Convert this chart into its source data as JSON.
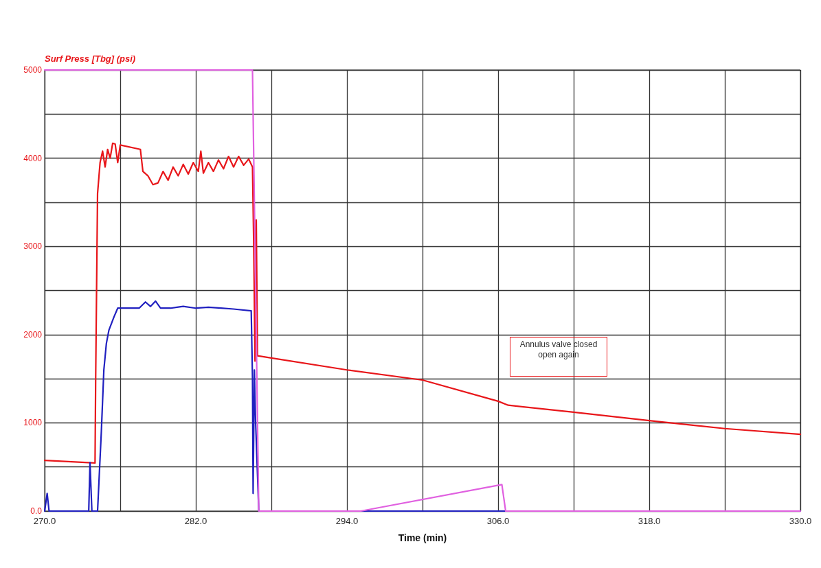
{
  "chart_data": {
    "type": "line",
    "xlabel": "Time (min)",
    "ylabel": "Surf Press [Tbg] (psi)",
    "xlim": [
      270,
      330
    ],
    "xticks": [
      {
        "value": 270,
        "label": "270.0"
      },
      {
        "value": 276,
        "label": null
      },
      {
        "value": 282,
        "label": "282.0"
      },
      {
        "value": 288,
        "label": null
      },
      {
        "value": 294,
        "label": "294.0"
      },
      {
        "value": 300,
        "label": null
      },
      {
        "value": 306,
        "label": "306.0"
      },
      {
        "value": 312,
        "label": null
      },
      {
        "value": 318,
        "label": "318.0"
      },
      {
        "value": 324,
        "label": null
      },
      {
        "value": 330,
        "label": "330.0"
      }
    ],
    "ylim": [
      0,
      5000
    ],
    "yticks": [
      {
        "value": 0,
        "label": "0.0"
      },
      {
        "value": 500,
        "label": null
      },
      1000,
      {
        "value": 1500,
        "label": null
      },
      2000,
      {
        "value": 2500,
        "label": null
      },
      3000,
      {
        "value": 3500,
        "label": null
      },
      4000,
      {
        "value": 4500,
        "label": null
      },
      5000
    ],
    "grid": true,
    "marker": "none",
    "line_style": "solid",
    "annotations": [
      "Annulus valve closed\nopen again"
    ],
    "series": [
      {
        "color": "#e8161a",
        "x": [
          270,
          274,
          274.05,
          274.2,
          274.4,
          274.6,
          274.8,
          275,
          275.2,
          275.4,
          275.6,
          275.8,
          276,
          277.6,
          277.8,
          278.2,
          278.6,
          279,
          279.4,
          279.8,
          280.2,
          280.6,
          281,
          281.4,
          281.8,
          282.2,
          282.4,
          282.6,
          283,
          283.4,
          283.8,
          284.2,
          284.6,
          285,
          285.4,
          285.8,
          286.2,
          286.5,
          286.6,
          286.7,
          286.8,
          286.9,
          288,
          294,
          300,
          306,
          306.8,
          312,
          318,
          324,
          330
        ],
        "values": [
          575,
          545,
          1500,
          3600,
          3950,
          4080,
          3900,
          4100,
          4000,
          4170,
          4160,
          3950,
          4150,
          4100,
          3850,
          3800,
          3700,
          3720,
          3850,
          3750,
          3900,
          3800,
          3930,
          3820,
          3950,
          3850,
          4080,
          3830,
          3950,
          3850,
          3980,
          3880,
          4020,
          3900,
          4020,
          3920,
          3990,
          3900,
          3000,
          1700,
          3300,
          1760,
          1735,
          1600,
          1485,
          1245,
          1200,
          1120,
          1025,
          935,
          870
        ]
      },
      {
        "color": "#2020c0",
        "x": [
          270,
          270.2,
          270.35,
          273.5,
          273.6,
          273.75,
          274.2,
          274.5,
          274.7,
          274.9,
          275.1,
          275.5,
          275.8,
          276.5,
          277.5,
          278,
          278.4,
          278.8,
          279.2,
          280,
          281,
          282,
          283,
          284,
          285,
          286.4,
          286.5,
          286.55,
          286.65,
          286.75,
          287,
          330
        ],
        "values": [
          0,
          200,
          0,
          0,
          550,
          0,
          0,
          900,
          1600,
          1900,
          2050,
          2200,
          2300,
          2300,
          2300,
          2370,
          2320,
          2380,
          2300,
          2300,
          2320,
          2300,
          2310,
          2300,
          2290,
          2270,
          1500,
          200,
          1600,
          1000,
          0,
          0
        ]
      },
      {
        "color": "#e060e0",
        "x": [
          270,
          286.5,
          287,
          295.1,
          306.3,
          306.6,
          330
        ],
        "values": [
          5000,
          5000,
          0,
          0,
          300,
          0,
          0
        ]
      }
    ]
  }
}
